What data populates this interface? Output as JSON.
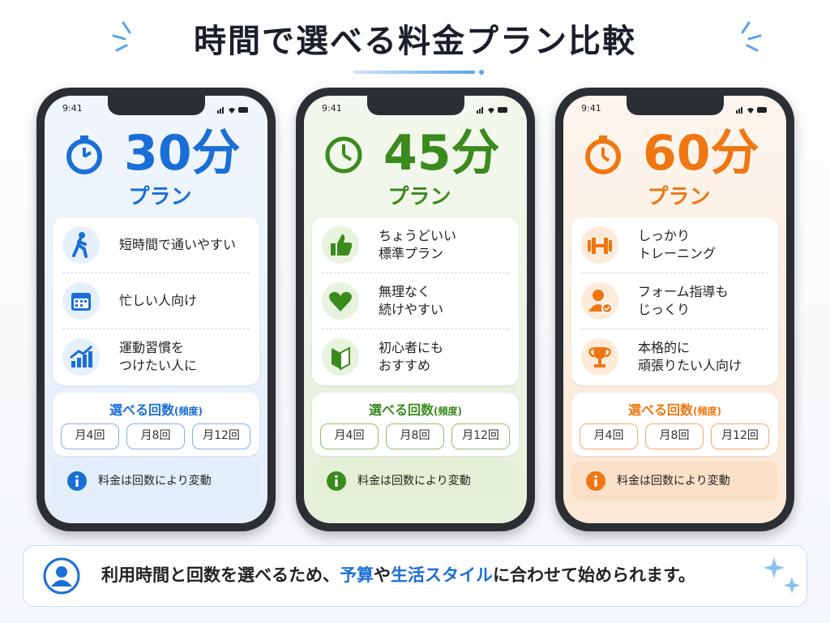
{
  "header": {
    "title": "時間で選べる料金プラン比較"
  },
  "plans": [
    {
      "status_time": "9:41",
      "duration": "30分",
      "plan_label": "プラン",
      "features": [
        {
          "lines": [
            "短時間で通いやすい"
          ]
        },
        {
          "lines": [
            "忙しい人向け"
          ]
        },
        {
          "lines": [
            "運動習慣を",
            "つけたい人に"
          ]
        }
      ],
      "frequency": {
        "title": "選べる回数",
        "note": "(頻度)",
        "options": [
          "月4回",
          "月8回",
          "月12回"
        ]
      },
      "note": "料金は回数により変動"
    },
    {
      "status_time": "9:41",
      "duration": "45分",
      "plan_label": "プラン",
      "features": [
        {
          "lines": [
            "ちょうどいい",
            "標準プラン"
          ]
        },
        {
          "lines": [
            "無理なく",
            "続けやすい"
          ]
        },
        {
          "lines": [
            "初心者にも",
            "おすすめ"
          ]
        }
      ],
      "frequency": {
        "title": "選べる回数",
        "note": "(頻度)",
        "options": [
          "月4回",
          "月8回",
          "月12回"
        ]
      },
      "note": "料金は回数により変動"
    },
    {
      "status_time": "9:41",
      "duration": "60分",
      "plan_label": "プラン",
      "features": [
        {
          "lines": [
            "しっかり",
            "トレーニング"
          ]
        },
        {
          "lines": [
            "フォーム指導も",
            "じっくり"
          ]
        },
        {
          "lines": [
            "本格的に",
            "頑張りたい人向け"
          ]
        }
      ],
      "frequency": {
        "title": "選べる回数",
        "note": "(頻度)",
        "options": [
          "月4回",
          "月8回",
          "月12回"
        ]
      },
      "note": "料金は回数により変動"
    }
  ],
  "footer": {
    "segments": [
      "利用時間と回数を選べるため、",
      "予算",
      "や",
      "生活スタイル",
      "に合わせて始められます。"
    ]
  }
}
